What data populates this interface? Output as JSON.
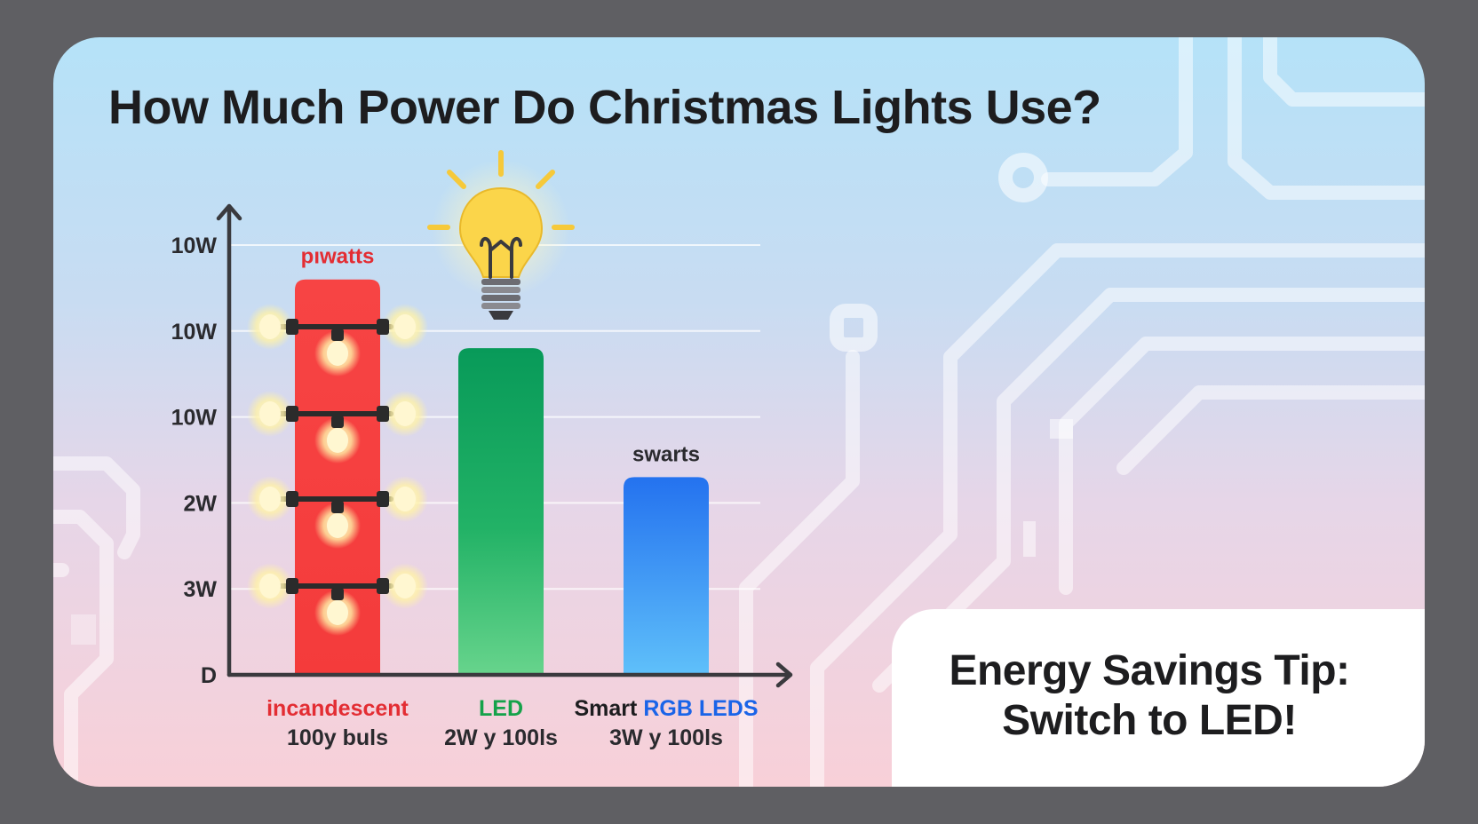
{
  "title": "How Much Power Do Christmas Lights Use?",
  "chart_data": {
    "type": "bar",
    "y_tick_labels": [
      "D",
      "3W",
      "2W",
      "10W",
      "10W",
      "10W"
    ],
    "categories": [
      {
        "name": "incandescent",
        "sub": "100y  buls",
        "color": "#e32d33"
      },
      {
        "name": "LED",
        "sub": "2W y 100ls",
        "color": "#15a24a"
      },
      {
        "name_prefix": "Smart ",
        "name": "RGB LEDS",
        "sub": "3W y  100ls",
        "color": "#1a64e8"
      }
    ],
    "values": [
      4.6,
      3.8,
      2.3
    ],
    "value_labels": [
      "pıwatts",
      "",
      "swarts"
    ],
    "ylim": [
      0,
      5
    ],
    "grid": true,
    "colors": {
      "incandescent": "#f53f3f",
      "led": "#0e9a5e",
      "rgb": "#2f7ef2"
    },
    "icons": [
      "light-bulb-icon",
      "string-light-icon"
    ]
  },
  "tip": {
    "line1": "Energy Savings Tip:",
    "line2": "Switch to LED!"
  }
}
